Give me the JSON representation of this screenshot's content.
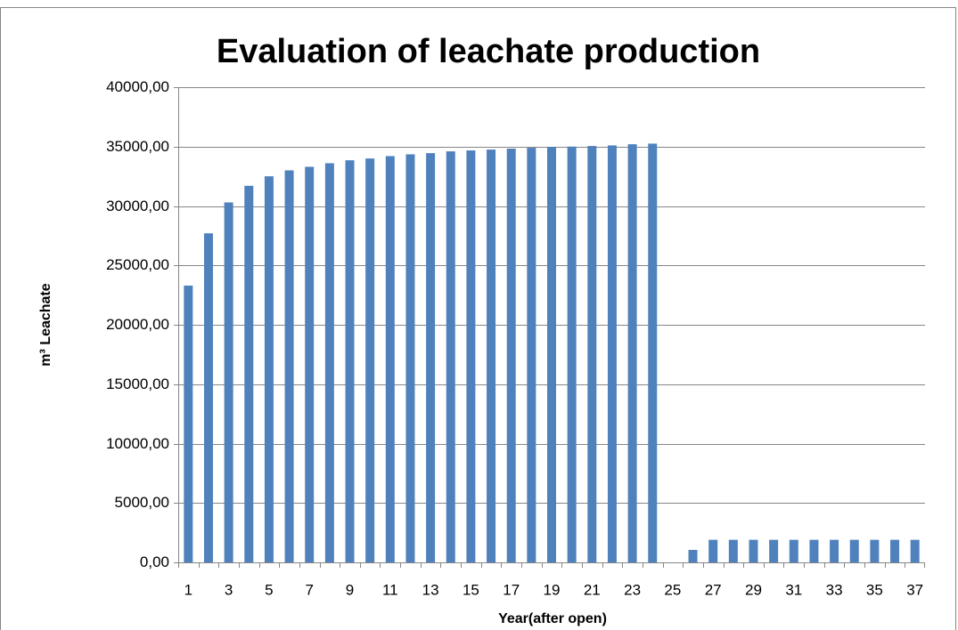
{
  "chart_data": {
    "type": "bar",
    "title": "Evaluation of leachate production",
    "x_label": "Year(after open)",
    "y_label": "m³ Leachate",
    "categories": [
      1,
      null,
      3,
      null,
      5,
      null,
      7,
      null,
      9,
      null,
      11,
      null,
      13,
      null,
      15,
      null,
      17,
      null,
      19,
      null,
      21,
      null,
      23,
      null,
      25,
      null,
      27,
      null,
      29,
      null,
      31,
      null,
      33,
      null,
      35,
      null,
      37
    ],
    "values": [
      23300,
      27700,
      30300,
      31700,
      32500,
      33000,
      33300,
      33600,
      33850,
      34000,
      34200,
      34350,
      34450,
      34600,
      34680,
      34750,
      34830,
      34900,
      34980,
      35000,
      35050,
      35100,
      35200,
      35250,
      0,
      1050,
      1900,
      1900,
      1900,
      1900,
      1900,
      1900,
      1900,
      1900,
      1900,
      1900,
      1900
    ],
    "color": "#4f81bd",
    "ylim": [
      0,
      40000
    ],
    "yticks": [
      {
        "value": 0,
        "label": "0,00"
      },
      {
        "value": 5000,
        "label": "5000,00"
      },
      {
        "value": 10000,
        "label": "10000,00"
      },
      {
        "value": 15000,
        "label": "15000,00"
      },
      {
        "value": 20000,
        "label": "20000,00"
      },
      {
        "value": 25000,
        "label": "25000,00"
      },
      {
        "value": 30000,
        "label": "30000,00"
      },
      {
        "value": 35000,
        "label": "35000,00"
      },
      {
        "value": 40000,
        "label": "40000,00"
      }
    ],
    "grid": true
  }
}
